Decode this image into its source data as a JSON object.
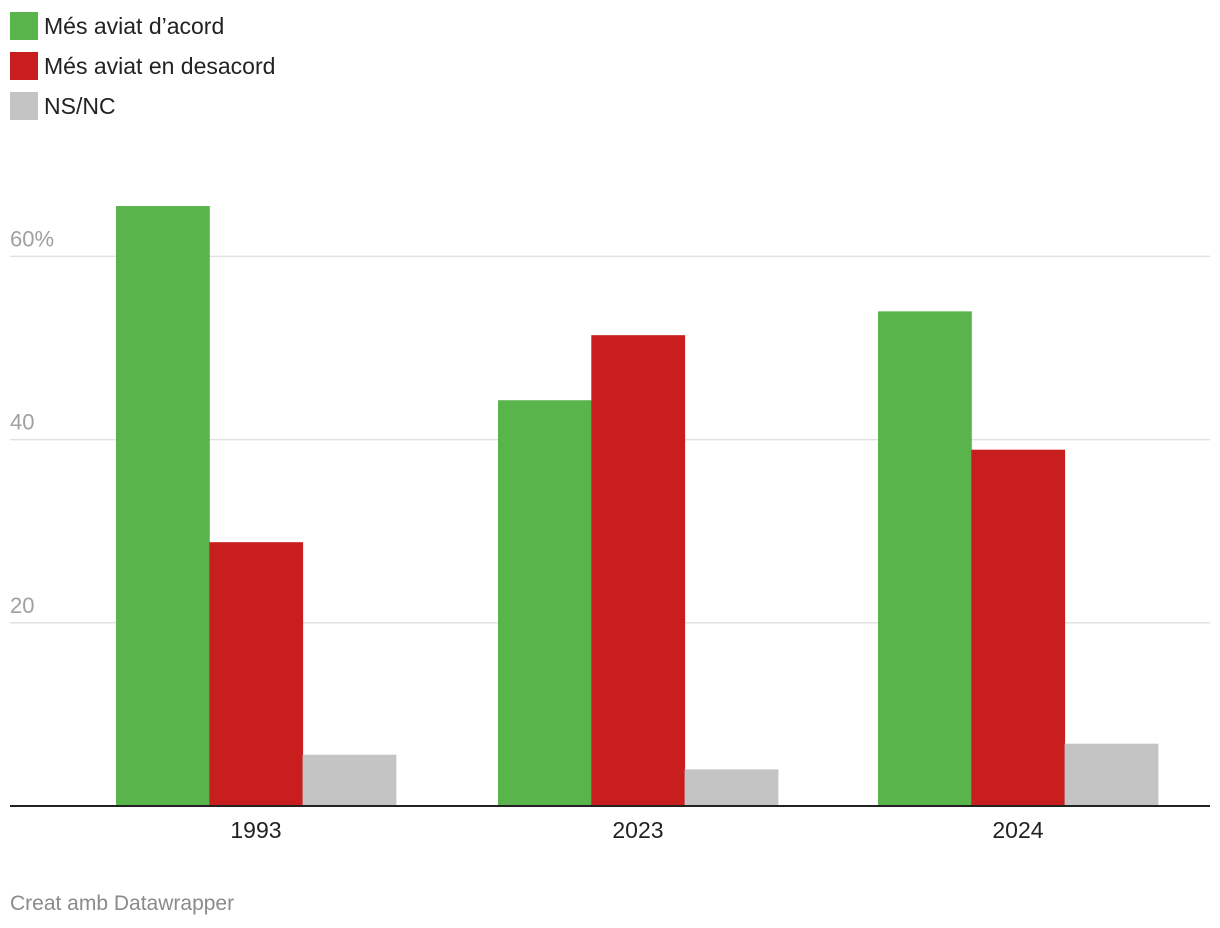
{
  "chart_data": {
    "type": "bar",
    "categories": [
      "1993",
      "2023",
      "2024"
    ],
    "series": [
      {
        "name": "Més aviat d’acord",
        "color": "#5ab44c",
        "values": [
          65.5,
          44.3,
          54.0
        ]
      },
      {
        "name": "Més aviat en desacord",
        "color": "#c81e1e",
        "values": [
          28.8,
          51.4,
          38.9
        ]
      },
      {
        "name": "NS/NC",
        "color": "#c4c4c4",
        "values": [
          5.6,
          4.0,
          6.8
        ]
      }
    ],
    "y_ticks": [
      {
        "value": 20,
        "label": "20"
      },
      {
        "value": 40,
        "label": "40"
      },
      {
        "value": 60,
        "label": "60%"
      }
    ],
    "ylim": [
      0,
      70
    ],
    "grid": true,
    "legend_position": "top-left",
    "credit": "Creat amb Datawrapper"
  }
}
